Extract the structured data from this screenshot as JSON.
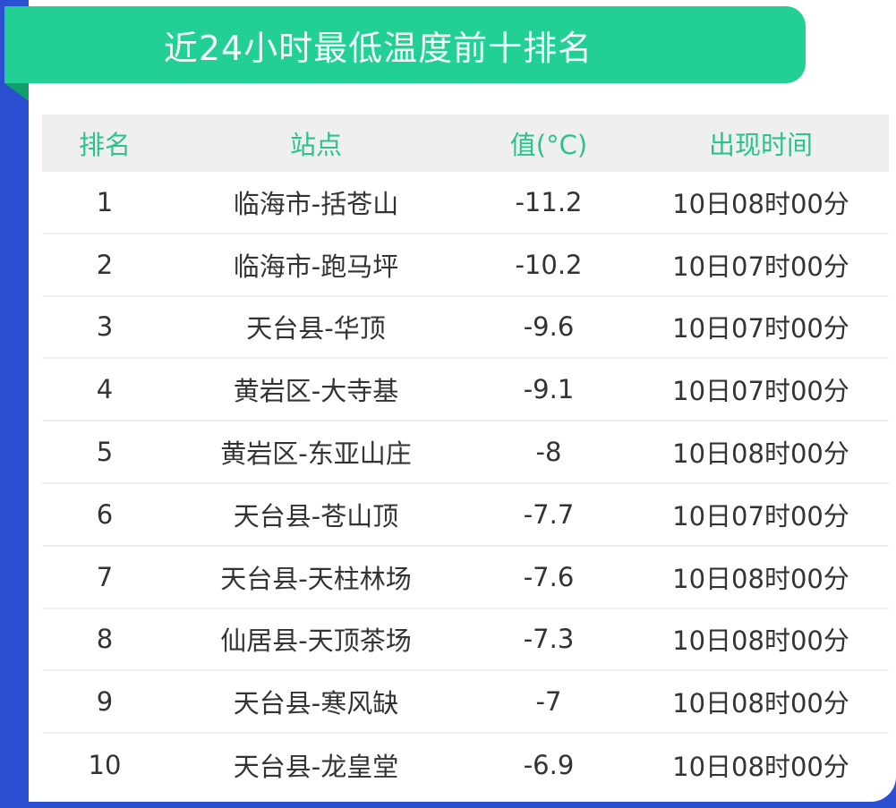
{
  "title": "近24小时最低温度前十排名",
  "colors": {
    "banner": "#22cf94",
    "header_text": "#2bc28b",
    "background": "#2a4fd0"
  },
  "columns": [
    "排名",
    "站点",
    "值(°C)",
    "出现时间"
  ],
  "rows": [
    [
      "1",
      "临海市-括苍山",
      "-11.2",
      "10日08时00分"
    ],
    [
      "2",
      "临海市-跑马坪",
      "-10.2",
      "10日07时00分"
    ],
    [
      "3",
      "天台县-华顶",
      "-9.6",
      "10日07时00分"
    ],
    [
      "4",
      "黄岩区-大寺基",
      "-9.1",
      "10日07时00分"
    ],
    [
      "5",
      "黄岩区-东亚山庄",
      "-8",
      "10日08时00分"
    ],
    [
      "6",
      "天台县-苍山顶",
      "-7.7",
      "10日07时00分"
    ],
    [
      "7",
      "天台县-天柱林场",
      "-7.6",
      "10日08时00分"
    ],
    [
      "8",
      "仙居县-天顶茶场",
      "-7.3",
      "10日08时00分"
    ],
    [
      "9",
      "天台县-寒风缺",
      "-7",
      "10日08时00分"
    ],
    [
      "10",
      "天台县-龙皇堂",
      "-6.9",
      "10日08时00分"
    ]
  ]
}
